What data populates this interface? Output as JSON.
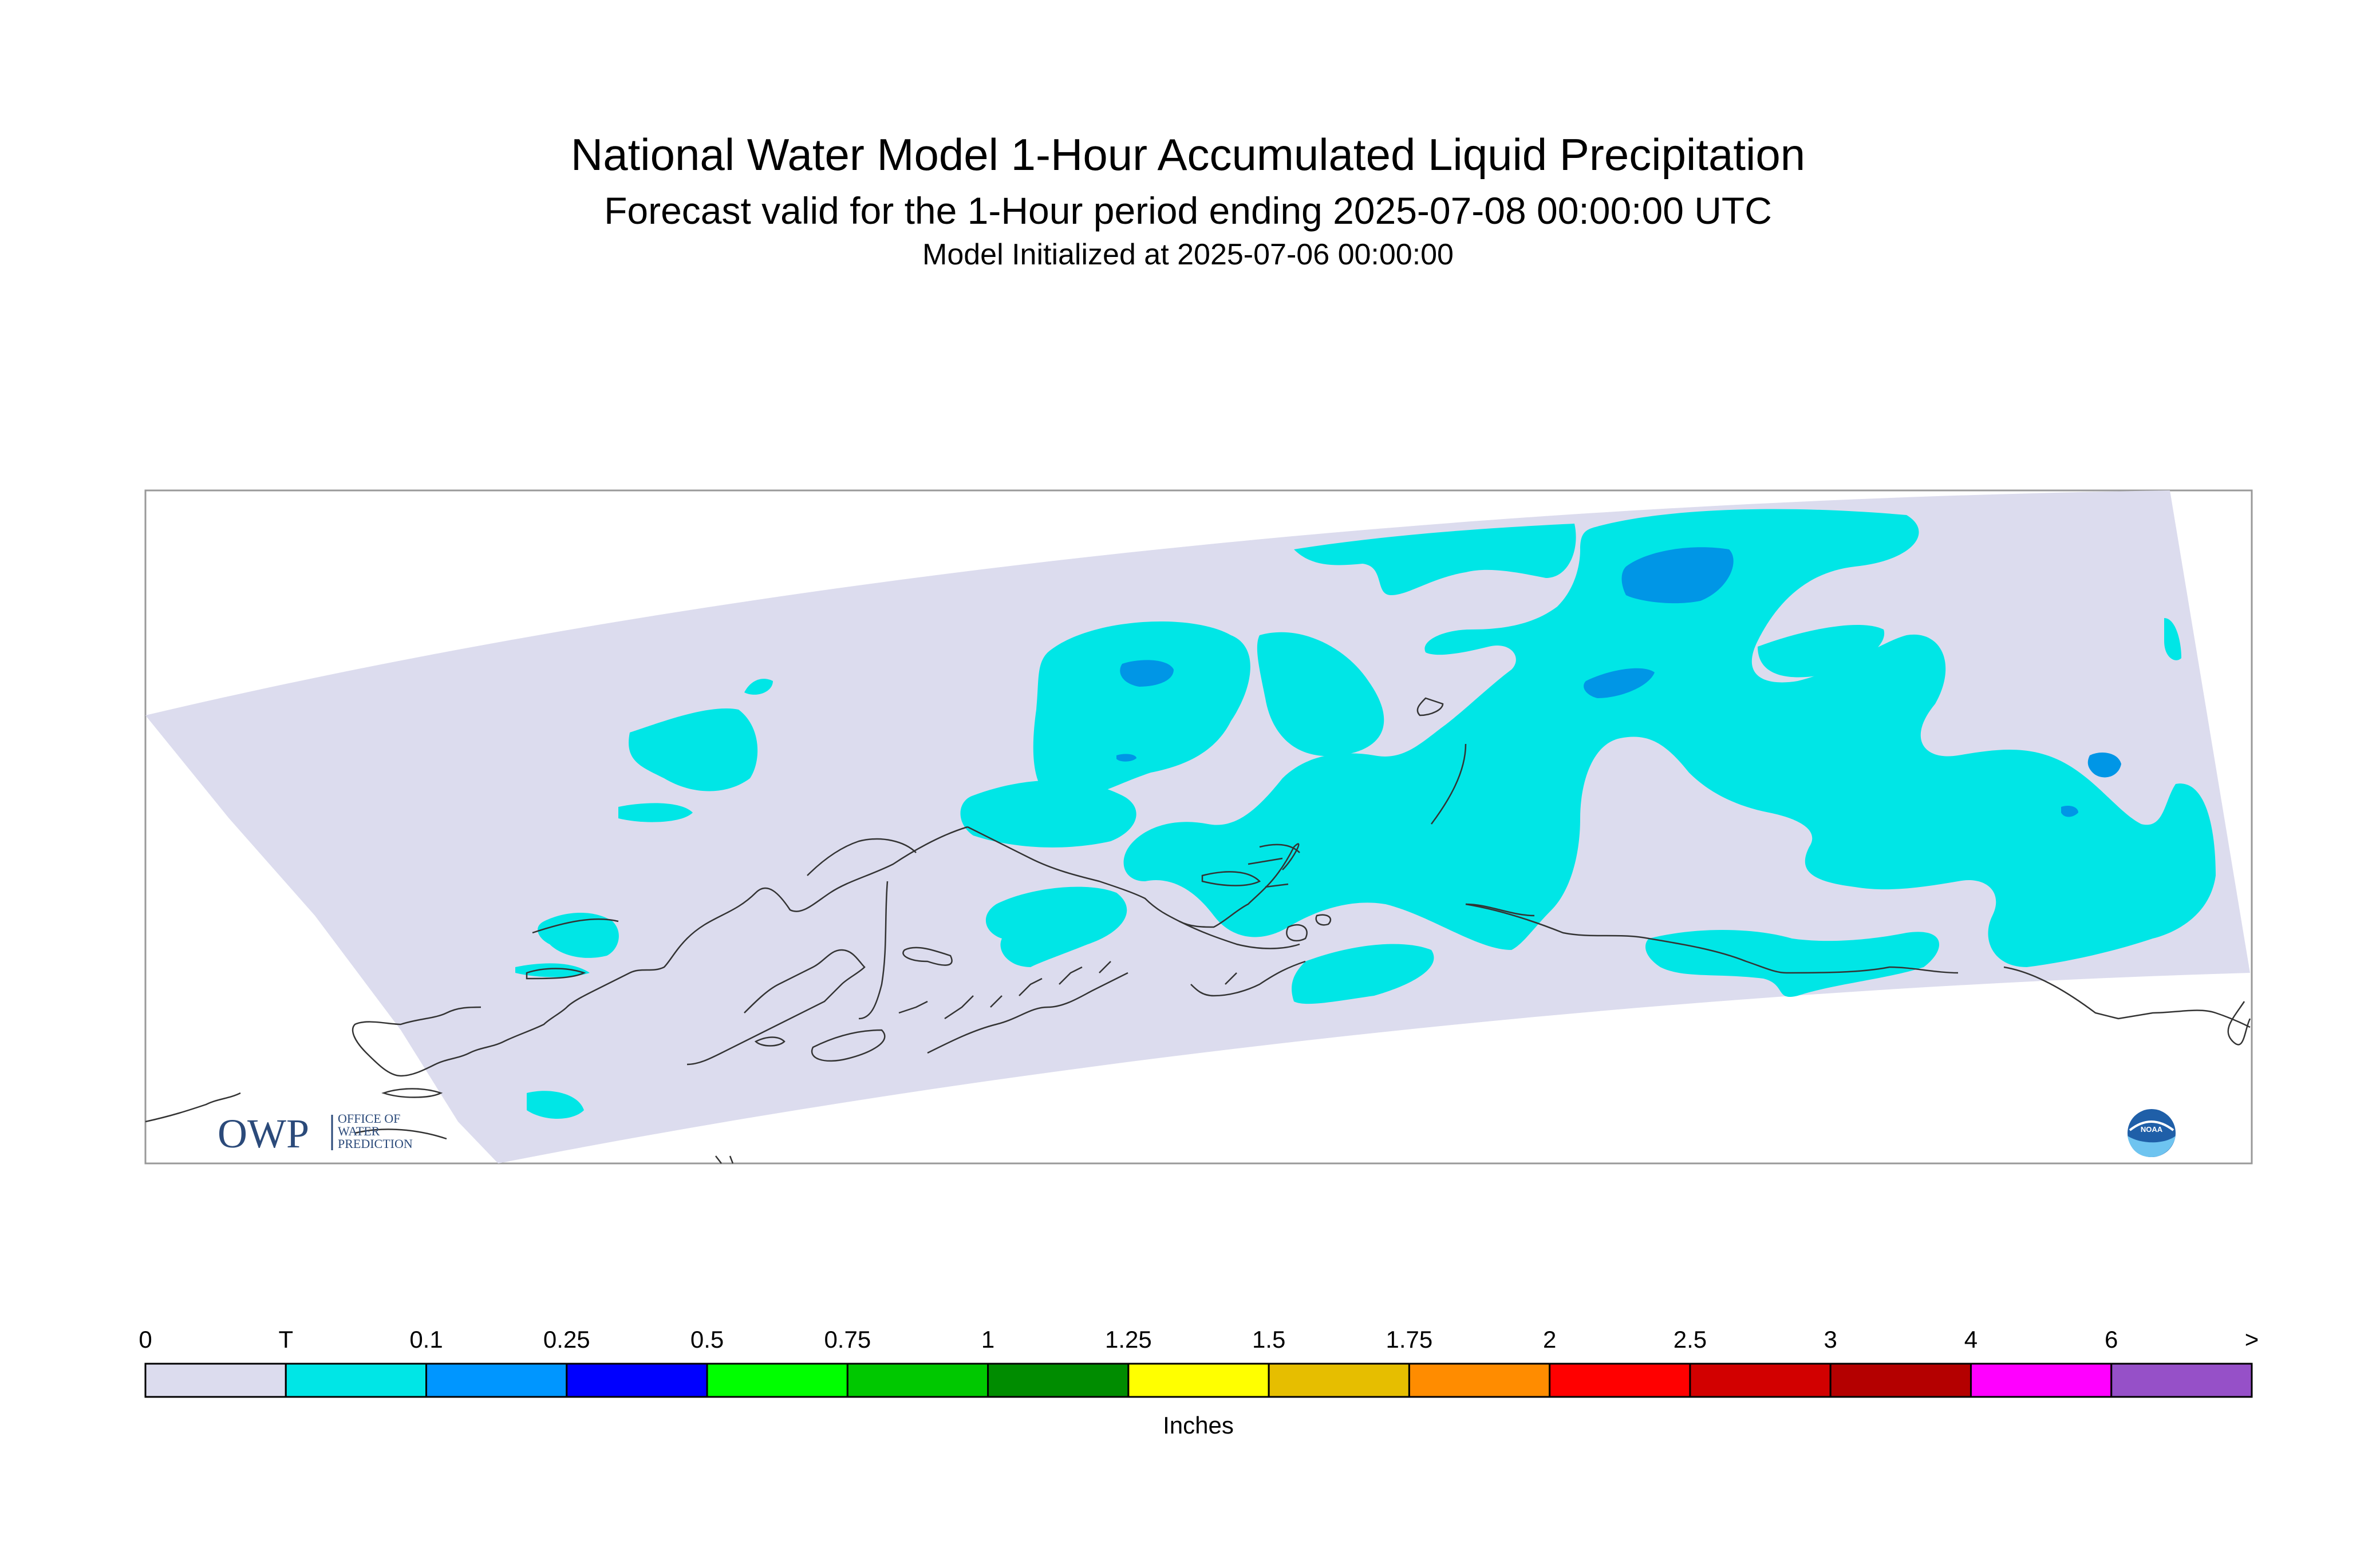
{
  "header": {
    "title": "National Water Model 1-Hour Accumulated Liquid Precipitation",
    "subtitle": "Forecast valid for the 1-Hour period ending 2025-07-08 00:00:00 UTC",
    "init_line": "Model Initialized at 2025-07-06 00:00:00"
  },
  "map": {
    "region_color": "#dcdcee",
    "coastline_color": "#333333",
    "precip_colors": {
      "trace": "#00e6e6",
      "light": "#0096e6"
    }
  },
  "legend": {
    "unit_label": "Inches",
    "bins": [
      {
        "label": "0",
        "color": "#dcdcee"
      },
      {
        "label": "T",
        "color": "#00e6e6"
      },
      {
        "label": "0.1",
        "color": "#0096ff"
      },
      {
        "label": "0.25",
        "color": "#0000ff"
      },
      {
        "label": "0.5",
        "color": "#00ff00"
      },
      {
        "label": "0.75",
        "color": "#00c800"
      },
      {
        "label": "1",
        "color": "#008c00"
      },
      {
        "label": "1.25",
        "color": "#ffff00"
      },
      {
        "label": "1.5",
        "color": "#e6be00"
      },
      {
        "label": "1.75",
        "color": "#ff8c00"
      },
      {
        "label": "2",
        "color": "#ff0000"
      },
      {
        "label": "2.5",
        "color": "#d20000"
      },
      {
        "label": "3",
        "color": "#b40000"
      },
      {
        "label": "4",
        "color": "#ff00ff"
      },
      {
        "label": "6",
        "color": "#9650c8"
      }
    ],
    "end_label": ">"
  },
  "logos": {
    "owp_mark": "OWP",
    "owp_text": [
      "OFFICE OF",
      "WATER",
      "PREDICTION"
    ],
    "noaa_text": "NOAA"
  }
}
